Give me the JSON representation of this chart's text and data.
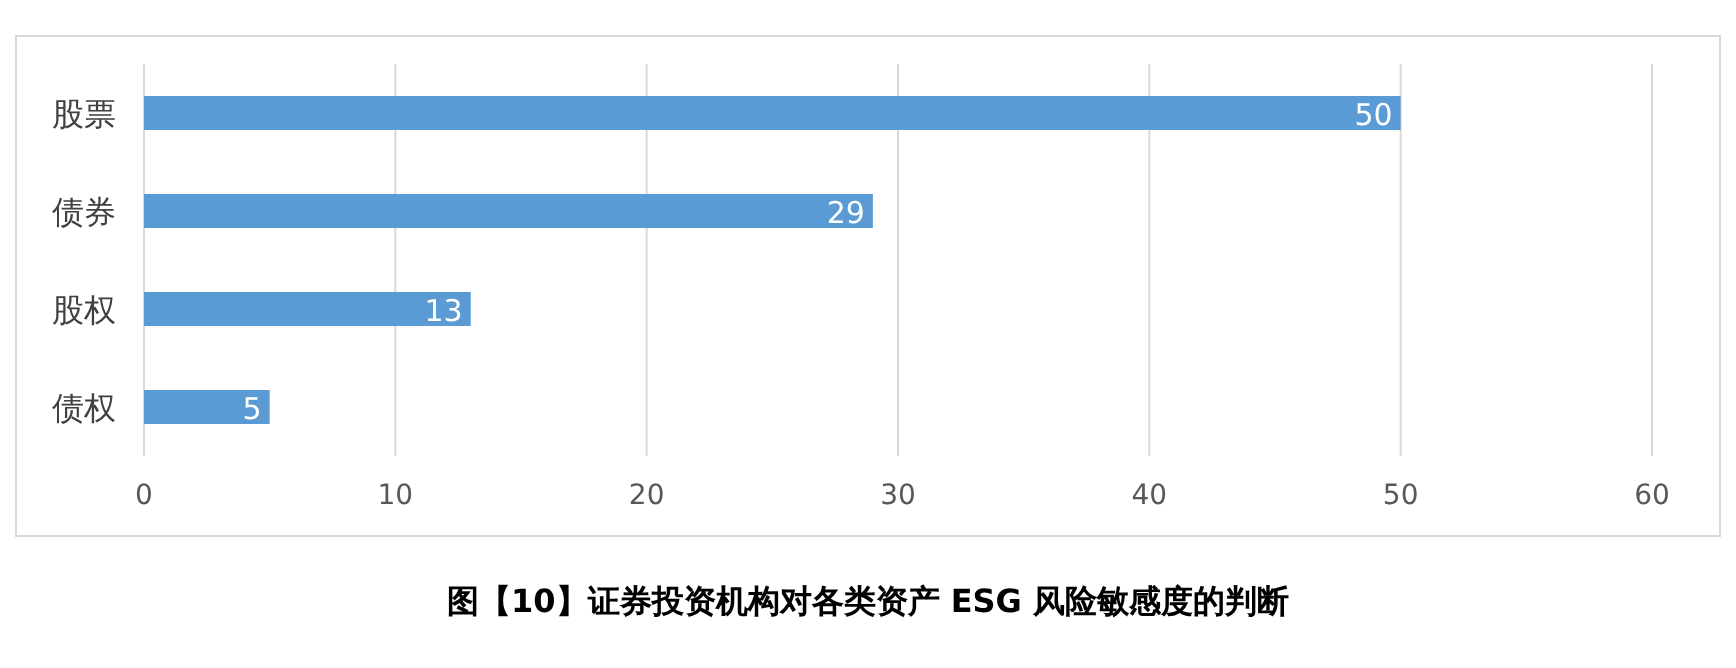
{
  "chart_data": {
    "type": "bar",
    "orientation": "horizontal",
    "title": "图【10】证券投资机构对各类资产 ESG 风险敏感度的判断",
    "categories": [
      "股票",
      "债券",
      "股权",
      "债权"
    ],
    "values": [
      50,
      29,
      13,
      5
    ],
    "color": "#5b9bd5",
    "xlim": [
      0,
      60
    ],
    "xticks": [
      0,
      10,
      20,
      30,
      40,
      50,
      60
    ],
    "grid": "x",
    "data_labels": true
  }
}
